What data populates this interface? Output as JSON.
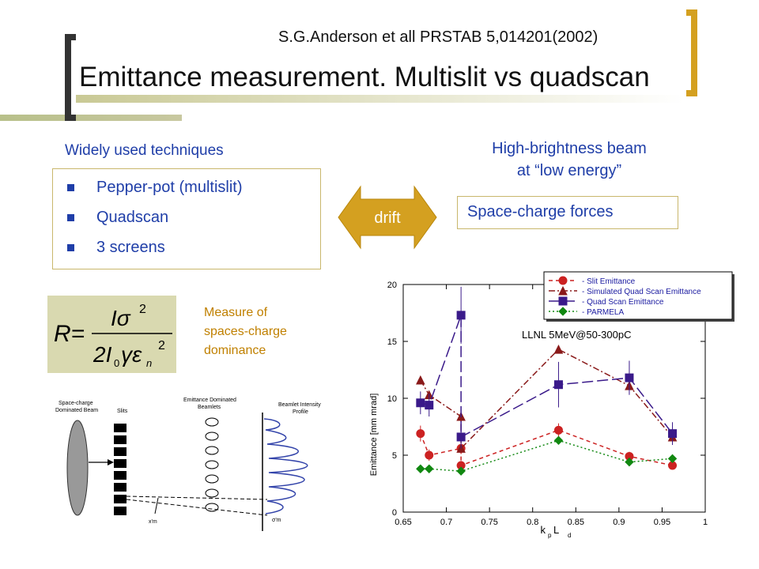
{
  "header": {
    "reference": "S.G.Anderson et all PRSTAB  5,014201(2002)",
    "title": "Emittance measurement. Multislit vs quadscan"
  },
  "techniques": {
    "heading": "Widely used techniques",
    "items": [
      "Pepper-pot (multislit)",
      "Quadscan",
      "3 screens"
    ]
  },
  "beam": {
    "line1": "High-brightness beam",
    "line2": "at “low energy”",
    "forces": "Space-charge forces"
  },
  "drift_label": "drift",
  "measure": {
    "line1": "Measure of",
    "line2": "spaces-charge",
    "line3": "dominance"
  },
  "diagram": {
    "beam_label_1": "Space-charge",
    "beam_label_2": "Dominated Beam",
    "slits_label": "Slits",
    "beamlets_label_1": "Emittance Dominated",
    "beamlets_label_2": "Beamlets",
    "profile_label_1": "Beamlet Intensity",
    "profile_label_2": "Profile",
    "xm_label": "x'm",
    "sigma_label": "σ'm"
  },
  "chart_data": {
    "type": "line",
    "annotation": "LLNL 5MeV@50-300pC",
    "xlabel_main": "k",
    "xlabel_sub1": "p",
    "xlabel_mid": " L",
    "xlabel_sub2": "d",
    "ylabel": "Emittance [mm mrad]",
    "xlim": [
      0.65,
      1.0
    ],
    "ylim": [
      0,
      20
    ],
    "xticks": [
      "0.65",
      "0.7",
      "0.75",
      "0.8",
      "0.85",
      "0.9",
      "0.95",
      "1"
    ],
    "yticks": [
      "0",
      "5",
      "10",
      "15",
      "20"
    ],
    "legend_position": "top-right",
    "series": [
      {
        "name": "Slit Emittance",
        "color": "#cc2222",
        "marker": "circle",
        "dash": "5,4",
        "x": [
          0.67,
          0.68,
          0.717,
          0.717,
          0.83,
          0.912,
          0.962
        ],
        "y": [
          6.9,
          5.0,
          5.6,
          4.1,
          7.2,
          4.9,
          4.1
        ],
        "err": [
          0.7,
          0.5,
          0.5,
          0.4,
          0.6,
          0.4,
          0.3
        ]
      },
      {
        "name": "Simulated Quad Scan Emittance",
        "color": "#8a1a1a",
        "marker": "triangle",
        "dash": "8,3,2,3",
        "x": [
          0.67,
          0.68,
          0.717,
          0.717,
          0.83,
          0.912,
          0.962
        ],
        "y": [
          11.6,
          10.3,
          8.4,
          5.6,
          14.3,
          11.1,
          6.6
        ],
        "err": []
      },
      {
        "name": "Quad Scan Emittance",
        "color": "#3a1a8a",
        "marker": "square",
        "dash": "14,5",
        "x": [
          0.67,
          0.68,
          0.717,
          0.717,
          0.83,
          0.912,
          0.962
        ],
        "y": [
          9.6,
          9.4,
          17.3,
          6.6,
          11.2,
          11.8,
          6.9
        ],
        "err": [
          1.0,
          1.0,
          2.5,
          1.0,
          2.0,
          1.5,
          1.0
        ]
      },
      {
        "name": "PARMELA",
        "color": "#118811",
        "marker": "diamond",
        "dash": "2,3",
        "x": [
          0.67,
          0.68,
          0.717,
          0.83,
          0.912,
          0.962
        ],
        "y": [
          3.8,
          3.8,
          3.6,
          6.3,
          4.4,
          4.7
        ],
        "err": []
      }
    ]
  }
}
